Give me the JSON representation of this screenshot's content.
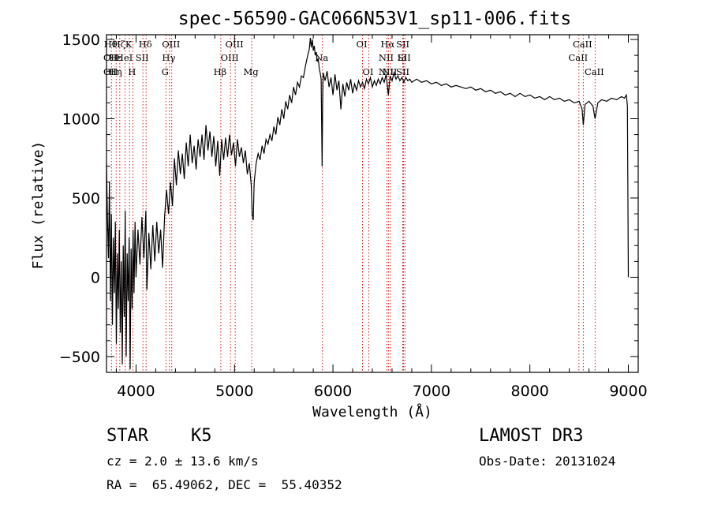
{
  "chart_data": {
    "type": "line",
    "title": "spec-56590-GAC066N53V1_sp11-006.fits",
    "xlabel": "Wavelength (Å)",
    "ylabel": "Flux (relative)",
    "xlim": [
      3700,
      9100
    ],
    "ylim": [
      -600,
      1530
    ],
    "x_ticks": [
      4000,
      5000,
      6000,
      7000,
      8000,
      9000
    ],
    "y_ticks": [
      -500,
      0,
      500,
      1000,
      1500
    ],
    "series": [
      {
        "name": "flux",
        "points": [
          [
            3700,
            720
          ],
          [
            3710,
            380
          ],
          [
            3720,
            120
          ],
          [
            3730,
            600
          ],
          [
            3740,
            -150
          ],
          [
            3750,
            400
          ],
          [
            3760,
            -300
          ],
          [
            3770,
            250
          ],
          [
            3780,
            -100
          ],
          [
            3790,
            350
          ],
          [
            3800,
            -420
          ],
          [
            3810,
            150
          ],
          [
            3820,
            -200
          ],
          [
            3830,
            300
          ],
          [
            3840,
            -350
          ],
          [
            3850,
            100
          ],
          [
            3860,
            -550
          ],
          [
            3870,
            200
          ],
          [
            3880,
            -250
          ],
          [
            3890,
            420
          ],
          [
            3900,
            -500
          ],
          [
            3910,
            150
          ],
          [
            3920,
            -150
          ],
          [
            3930,
            250
          ],
          [
            3940,
            -580
          ],
          [
            3950,
            180
          ],
          [
            3960,
            -200
          ],
          [
            3970,
            300
          ],
          [
            3980,
            -100
          ],
          [
            3990,
            350
          ],
          [
            4000,
            0
          ],
          [
            4020,
            300
          ],
          [
            4040,
            80
          ],
          [
            4060,
            380
          ],
          [
            4080,
            120
          ],
          [
            4100,
            420
          ],
          [
            4110,
            -80
          ],
          [
            4130,
            280
          ],
          [
            4150,
            50
          ],
          [
            4170,
            330
          ],
          [
            4190,
            100
          ],
          [
            4210,
            350
          ],
          [
            4230,
            150
          ],
          [
            4250,
            300
          ],
          [
            4270,
            60
          ],
          [
            4290,
            380
          ],
          [
            4310,
            550
          ],
          [
            4330,
            400
          ],
          [
            4350,
            600
          ],
          [
            4370,
            450
          ],
          [
            4390,
            750
          ],
          [
            4410,
            580
          ],
          [
            4430,
            800
          ],
          [
            4450,
            650
          ],
          [
            4470,
            780
          ],
          [
            4490,
            620
          ],
          [
            4510,
            850
          ],
          [
            4530,
            700
          ],
          [
            4550,
            900
          ],
          [
            4570,
            720
          ],
          [
            4590,
            830
          ],
          [
            4610,
            680
          ],
          [
            4630,
            870
          ],
          [
            4650,
            760
          ],
          [
            4670,
            900
          ],
          [
            4690,
            740
          ],
          [
            4710,
            960
          ],
          [
            4730,
            800
          ],
          [
            4750,
            920
          ],
          [
            4770,
            760
          ],
          [
            4790,
            890
          ],
          [
            4810,
            700
          ],
          [
            4830,
            860
          ],
          [
            4850,
            640
          ],
          [
            4870,
            870
          ],
          [
            4890,
            740
          ],
          [
            4910,
            880
          ],
          [
            4930,
            760
          ],
          [
            4950,
            900
          ],
          [
            4970,
            770
          ],
          [
            4990,
            850
          ],
          [
            5010,
            700
          ],
          [
            5030,
            870
          ],
          [
            5050,
            760
          ],
          [
            5070,
            820
          ],
          [
            5090,
            720
          ],
          [
            5110,
            800
          ],
          [
            5130,
            650
          ],
          [
            5150,
            720
          ],
          [
            5170,
            580
          ],
          [
            5180,
            400
          ],
          [
            5190,
            360
          ],
          [
            5200,
            600
          ],
          [
            5220,
            720
          ],
          [
            5240,
            780
          ],
          [
            5260,
            740
          ],
          [
            5280,
            830
          ],
          [
            5300,
            780
          ],
          [
            5320,
            870
          ],
          [
            5340,
            840
          ],
          [
            5360,
            900
          ],
          [
            5380,
            860
          ],
          [
            5400,
            950
          ],
          [
            5420,
            900
          ],
          [
            5440,
            1010
          ],
          [
            5460,
            960
          ],
          [
            5480,
            1060
          ],
          [
            5500,
            1000
          ],
          [
            5520,
            1110
          ],
          [
            5540,
            1060
          ],
          [
            5560,
            1150
          ],
          [
            5580,
            1100
          ],
          [
            5600,
            1200
          ],
          [
            5620,
            1150
          ],
          [
            5640,
            1230
          ],
          [
            5660,
            1200
          ],
          [
            5680,
            1270
          ],
          [
            5700,
            1260
          ],
          [
            5720,
            1330
          ],
          [
            5740,
            1390
          ],
          [
            5760,
            1440
          ],
          [
            5770,
            1510
          ],
          [
            5780,
            1450
          ],
          [
            5790,
            1500
          ],
          [
            5800,
            1430
          ],
          [
            5810,
            1460
          ],
          [
            5820,
            1400
          ],
          [
            5830,
            1420
          ],
          [
            5840,
            1360
          ],
          [
            5850,
            1380
          ],
          [
            5860,
            1320
          ],
          [
            5870,
            1290
          ],
          [
            5880,
            1250
          ],
          [
            5890,
            700
          ],
          [
            5895,
            1100
          ],
          [
            5900,
            1290
          ],
          [
            5920,
            1240
          ],
          [
            5940,
            1300
          ],
          [
            5960,
            1200
          ],
          [
            5980,
            1260
          ],
          [
            6000,
            1150
          ],
          [
            6020,
            1280
          ],
          [
            6040,
            1180
          ],
          [
            6060,
            1240
          ],
          [
            6080,
            1060
          ],
          [
            6100,
            1220
          ],
          [
            6120,
            1140
          ],
          [
            6140,
            1230
          ],
          [
            6160,
            1180
          ],
          [
            6180,
            1250
          ],
          [
            6200,
            1160
          ],
          [
            6220,
            1220
          ],
          [
            6240,
            1180
          ],
          [
            6260,
            1240
          ],
          [
            6280,
            1200
          ],
          [
            6300,
            1230
          ],
          [
            6320,
            1190
          ],
          [
            6340,
            1250
          ],
          [
            6360,
            1220
          ],
          [
            6380,
            1260
          ],
          [
            6400,
            1200
          ],
          [
            6420,
            1240
          ],
          [
            6440,
            1210
          ],
          [
            6460,
            1250
          ],
          [
            6480,
            1220
          ],
          [
            6500,
            1260
          ],
          [
            6520,
            1230
          ],
          [
            6540,
            1280
          ],
          [
            6563,
            1150
          ],
          [
            6580,
            1270
          ],
          [
            6600,
            1240
          ],
          [
            6620,
            1290
          ],
          [
            6640,
            1250
          ],
          [
            6660,
            1270
          ],
          [
            6680,
            1240
          ],
          [
            6700,
            1260
          ],
          [
            6720,
            1230
          ],
          [
            6740,
            1260
          ],
          [
            6760,
            1240
          ],
          [
            6780,
            1250
          ],
          [
            6800,
            1230
          ],
          [
            6850,
            1250
          ],
          [
            6900,
            1230
          ],
          [
            6950,
            1240
          ],
          [
            7000,
            1220
          ],
          [
            7050,
            1230
          ],
          [
            7100,
            1210
          ],
          [
            7150,
            1220
          ],
          [
            7200,
            1200
          ],
          [
            7250,
            1210
          ],
          [
            7300,
            1200
          ],
          [
            7350,
            1190
          ],
          [
            7400,
            1200
          ],
          [
            7450,
            1180
          ],
          [
            7500,
            1190
          ],
          [
            7550,
            1170
          ],
          [
            7600,
            1180
          ],
          [
            7650,
            1160
          ],
          [
            7700,
            1170
          ],
          [
            7750,
            1150
          ],
          [
            7800,
            1160
          ],
          [
            7850,
            1140
          ],
          [
            7900,
            1160
          ],
          [
            7950,
            1140
          ],
          [
            8000,
            1150
          ],
          [
            8050,
            1130
          ],
          [
            8100,
            1140
          ],
          [
            8150,
            1120
          ],
          [
            8200,
            1140
          ],
          [
            8250,
            1120
          ],
          [
            8300,
            1130
          ],
          [
            8350,
            1110
          ],
          [
            8400,
            1120
          ],
          [
            8450,
            1100
          ],
          [
            8500,
            1110
          ],
          [
            8530,
            1060
          ],
          [
            8542,
            960
          ],
          [
            8560,
            1090
          ],
          [
            8600,
            1110
          ],
          [
            8640,
            1080
          ],
          [
            8662,
            1000
          ],
          [
            8690,
            1100
          ],
          [
            8730,
            1120
          ],
          [
            8780,
            1110
          ],
          [
            8830,
            1130
          ],
          [
            8880,
            1120
          ],
          [
            8930,
            1140
          ],
          [
            8960,
            1130
          ],
          [
            8980,
            1150
          ],
          [
            8990,
            1080
          ],
          [
            9000,
            0
          ]
        ]
      }
    ],
    "lines": [
      {
        "x": 3750,
        "labels": [
          "Hθ",
          "OII",
          "OII"
        ],
        "rows": [
          0,
          1,
          2
        ]
      },
      {
        "x": 3798,
        "labels": [
          "Hε",
          "Hη"
        ],
        "rows": [
          1,
          2
        ]
      },
      {
        "x": 3835,
        "labels": [
          "Hζ"
        ],
        "rows": [
          0
        ]
      },
      {
        "x": 3889,
        "labels": [
          "HeI"
        ],
        "rows": [
          1
        ]
      },
      {
        "x": 3934,
        "labels": [
          "K"
        ],
        "rows": [
          0
        ]
      },
      {
        "x": 3968,
        "labels": [
          "H"
        ],
        "rows": [
          2
        ]
      },
      {
        "x": 4070,
        "labels": [
          "SII"
        ],
        "rows": [
          1
        ]
      },
      {
        "x": 4102,
        "labels": [
          "Hδ"
        ],
        "rows": [
          0
        ]
      },
      {
        "x": 4304,
        "labels": [
          "G"
        ],
        "rows": [
          2
        ]
      },
      {
        "x": 4340,
        "labels": [
          "Hγ"
        ],
        "rows": [
          1
        ]
      },
      {
        "x": 4363,
        "labels": [
          "OIII"
        ],
        "rows": [
          0
        ]
      },
      {
        "x": 4861,
        "labels": [
          "Hβ"
        ],
        "rows": [
          2
        ]
      },
      {
        "x": 4959,
        "labels": [
          "OIII"
        ],
        "rows": [
          1
        ]
      },
      {
        "x": 5007,
        "labels": [
          "OIII"
        ],
        "rows": [
          0
        ]
      },
      {
        "x": 5175,
        "labels": [
          "Mg"
        ],
        "rows": [
          2
        ]
      },
      {
        "x": 5893,
        "labels": [
          "Na"
        ],
        "rows": [
          1
        ]
      },
      {
        "x": 6300,
        "labels": [
          "OI"
        ],
        "rows": [
          0
        ]
      },
      {
        "x": 6364,
        "labels": [
          "OI"
        ],
        "rows": [
          2
        ]
      },
      {
        "x": 6548,
        "labels": [
          "NII",
          "NII"
        ],
        "rows": [
          1,
          2
        ]
      },
      {
        "x": 6563,
        "labels": [
          "Hα"
        ],
        "rows": [
          0
        ]
      },
      {
        "x": 6583,
        "labels": [
          "NII"
        ],
        "rows": [
          2
        ]
      },
      {
        "x": 6708,
        "labels": [
          "Li"
        ],
        "rows": [
          1
        ]
      },
      {
        "x": 6717,
        "labels": [
          "SII",
          "SII"
        ],
        "rows": [
          0,
          2
        ]
      },
      {
        "x": 6731,
        "labels": [
          "SII"
        ],
        "rows": [
          1
        ]
      },
      {
        "x": 8498,
        "labels": [
          "CaII"
        ],
        "rows": [
          1
        ]
      },
      {
        "x": 8542,
        "labels": [
          "CaII"
        ],
        "rows": [
          0
        ]
      },
      {
        "x": 8662,
        "labels": [
          "CaII"
        ],
        "rows": [
          2
        ]
      }
    ]
  },
  "footer": {
    "object_type": "STAR",
    "subclass": "K5",
    "survey": "LAMOST DR3",
    "redshift": "cz = 2.0 ± 13.6 km/s",
    "obs_date": "Obs-Date: 20131024",
    "coords": "RA =  65.49062, DEC =  55.40352"
  },
  "colors": {
    "axis": "#000000",
    "spectrum": "#000000",
    "line_marker": "#cc0000",
    "background": "#ffffff"
  }
}
